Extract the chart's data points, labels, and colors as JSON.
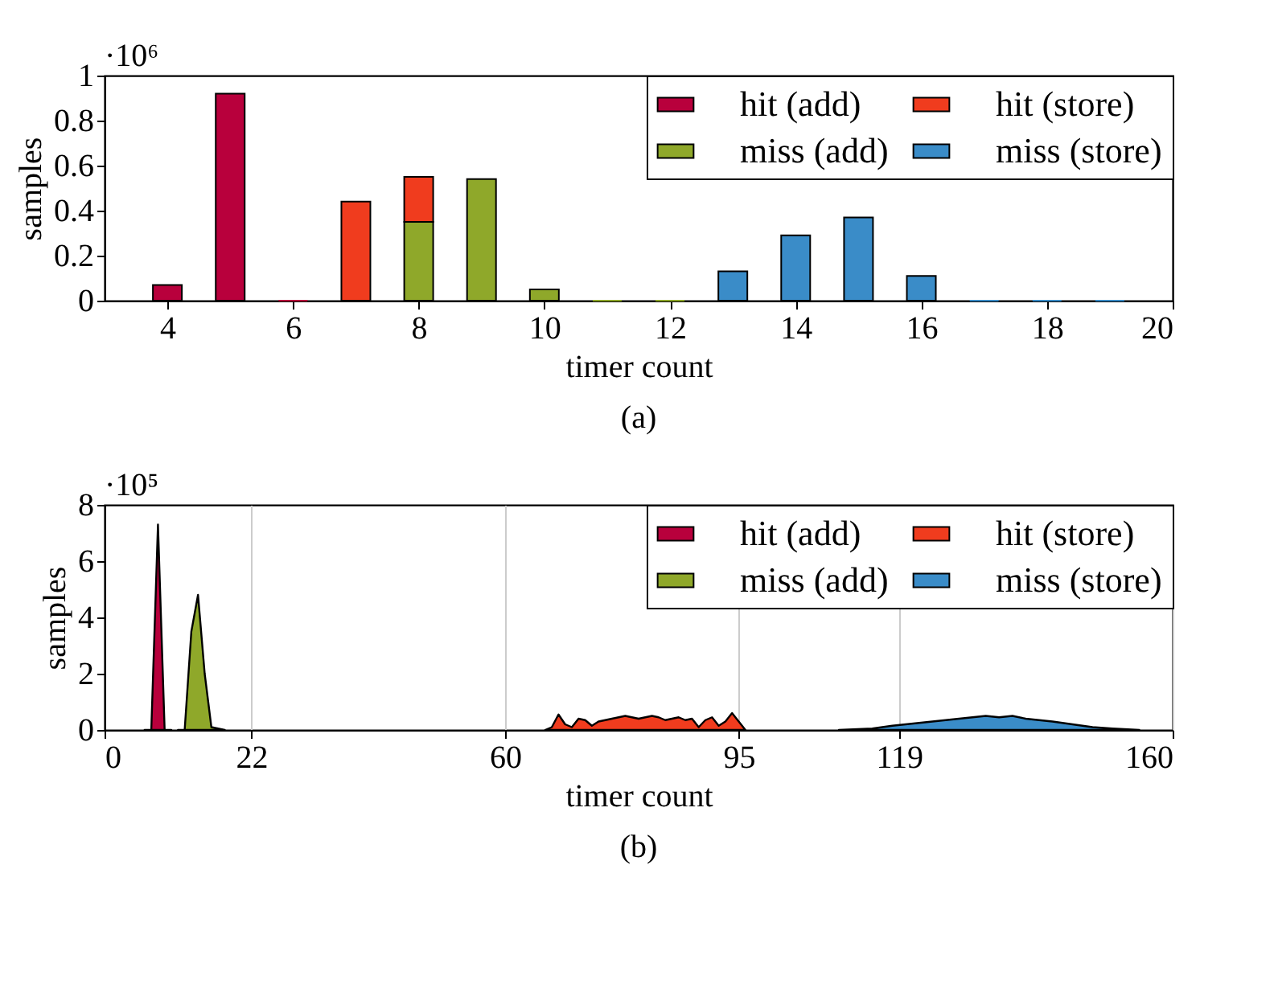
{
  "chart_data": [
    {
      "type": "bar",
      "stacked": true,
      "title": "(a)",
      "xlabel": "timer count",
      "ylabel": "samples",
      "annotations": [
        "·10⁶"
      ],
      "x": [
        4,
        5,
        6,
        7,
        8,
        9,
        10,
        11,
        12,
        13,
        14,
        15,
        16,
        17,
        18,
        19
      ],
      "series": [
        {
          "name": "hit (add)",
          "color": "#b8003c",
          "values": [
            0.07,
            0.92,
            0,
            null,
            null,
            null,
            null,
            null,
            null,
            null,
            null,
            null,
            null,
            null,
            null,
            null
          ]
        },
        {
          "name": "miss (add)",
          "color": "#8fa82a",
          "values": [
            null,
            null,
            null,
            null,
            0.35,
            0.54,
            0.05,
            0,
            0,
            null,
            null,
            null,
            null,
            null,
            null,
            null
          ]
        },
        {
          "name": "hit (store)",
          "color": "#f03c1e",
          "values": [
            null,
            null,
            null,
            0.44,
            0.2,
            null,
            null,
            null,
            null,
            null,
            null,
            null,
            null,
            null,
            null,
            null
          ]
        },
        {
          "name": "miss (store)",
          "color": "#3a8cc8",
          "values": [
            null,
            null,
            null,
            null,
            null,
            null,
            null,
            null,
            null,
            0.13,
            0.29,
            0.37,
            0.11,
            0,
            0,
            0
          ]
        }
      ],
      "xlim": [
        3,
        20
      ],
      "xticks": [
        4,
        6,
        8,
        10,
        12,
        14,
        16,
        18,
        20
      ],
      "ylim": [
        0,
        1
      ],
      "yticks": [
        0,
        0.2,
        0.4,
        0.6,
        0.8,
        1
      ],
      "grid": false,
      "legend": "top right"
    },
    {
      "type": "area",
      "title": "(b)",
      "xlabel": "timer count",
      "ylabel": "samples",
      "annotations": [
        "·10⁵"
      ],
      "series": [
        {
          "name": "hit (add)",
          "color": "#b8003c",
          "x": [
            6,
            7,
            8,
            9,
            10
          ],
          "values": [
            0,
            0,
            7.3,
            0,
            0
          ]
        },
        {
          "name": "miss (add)",
          "color": "#8fa82a",
          "x": [
            11,
            12,
            13,
            14,
            15,
            16,
            17,
            18
          ],
          "values": [
            0,
            0,
            3.5,
            4.8,
            2.0,
            0.1,
            0.05,
            0
          ]
        },
        {
          "name": "hit (store)",
          "color": "#f03c1e",
          "x": [
            66,
            67,
            68,
            69,
            70,
            71,
            72,
            73,
            74,
            75,
            76,
            77,
            78,
            79,
            80,
            81,
            82,
            83,
            84,
            85,
            86,
            87,
            88,
            89,
            90,
            91,
            92,
            93,
            94,
            95,
            96
          ],
          "values": [
            0,
            0.1,
            0.55,
            0.2,
            0.1,
            0.4,
            0.35,
            0.15,
            0.3,
            0.35,
            0.4,
            0.45,
            0.5,
            0.45,
            0.4,
            0.45,
            0.5,
            0.45,
            0.35,
            0.4,
            0.45,
            0.35,
            0.4,
            0.1,
            0.35,
            0.45,
            0.15,
            0.3,
            0.6,
            0.3,
            0
          ]
        },
        {
          "name": "miss (store)",
          "color": "#3a8cc8",
          "x": [
            110,
            115,
            118,
            120,
            122,
            124,
            126,
            128,
            130,
            132,
            134,
            136,
            138,
            140,
            142,
            145,
            148,
            151,
            155
          ],
          "values": [
            0,
            0.05,
            0.15,
            0.2,
            0.25,
            0.3,
            0.35,
            0.4,
            0.45,
            0.5,
            0.45,
            0.5,
            0.4,
            0.35,
            0.3,
            0.2,
            0.1,
            0.05,
            0
          ]
        }
      ],
      "xlim": [
        0,
        160
      ],
      "xticks": [
        0,
        22,
        60,
        95,
        119,
        160
      ],
      "ylim": [
        0,
        8
      ],
      "yticks": [
        0,
        2,
        4,
        6,
        8
      ],
      "grid": "x",
      "legend": "top right"
    }
  ]
}
